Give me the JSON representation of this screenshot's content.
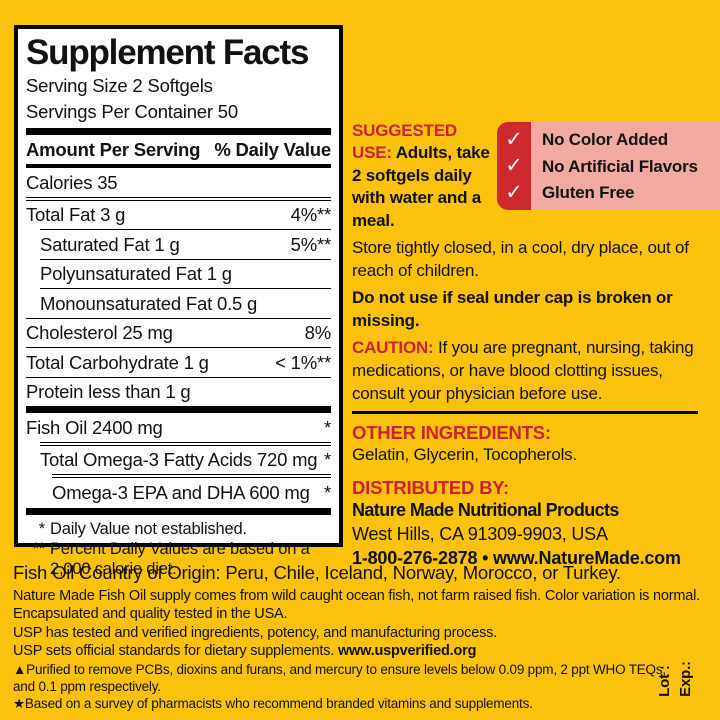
{
  "colors": {
    "background": "#FBC20D",
    "panel_bg": "#FFFFFF",
    "text": "#121212",
    "heading_red": "#CE2130",
    "badge_red": "#CE2A2E",
    "badge_pink": "#F2A9A2"
  },
  "panel": {
    "title": "Supplement Facts",
    "serving_size": "Serving Size 2 Softgels",
    "servings_per_container": "Servings Per Container 50",
    "header": {
      "left": "Amount Per Serving",
      "right": "% Daily Value"
    },
    "rows": [
      {
        "label": "Calories 35",
        "value": "",
        "cls": "sep-none"
      },
      {
        "label": "Total Fat 3 g",
        "value": "4%**",
        "cls": "sep-double"
      },
      {
        "label": "Saturated Fat 1 g",
        "value": "5%**",
        "cls": "sep-thin ind1"
      },
      {
        "label": "Polyunsaturated Fat 1 g",
        "value": "",
        "cls": "sep-thin ind1"
      },
      {
        "label": "Monounsaturated Fat 0.5 g",
        "value": "",
        "cls": "sep-thin ind1"
      },
      {
        "label": "Cholesterol 25 mg",
        "value": "8%",
        "cls": "sep-thin"
      },
      {
        "label": "Total Carbohydrate 1 g",
        "value": "< 1%**",
        "cls": "sep-thin"
      },
      {
        "label": "Protein less than 1 g",
        "value": "",
        "cls": "sep-thin"
      },
      {
        "label": "Fish Oil 2400 mg",
        "value": "*",
        "cls": "sep-thick"
      },
      {
        "label": "Total Omega-3 Fatty Acids 720 mg",
        "value": "*",
        "cls": "sep-double ind1"
      },
      {
        "label": "Omega-3 EPA and DHA 600 mg",
        "value": "*",
        "cls": "sep-double ind2"
      }
    ],
    "footnotes": [
      {
        "symbol": "*",
        "text": "Daily Value not established."
      },
      {
        "symbol": "**",
        "text": "Percent Daily Values are based on a 2,000 calorie diet."
      }
    ]
  },
  "right_column": {
    "suggested_use": {
      "heading": "SUGGESTED USE:",
      "text": " Adults, take 2 softgels daily with water and a meal."
    },
    "badge": {
      "items": [
        {
          "check": "✓",
          "label": "No Color Added"
        },
        {
          "check": "✓",
          "label": "No Artificial Flavors"
        },
        {
          "check": "✓",
          "label": "Gluten Free"
        }
      ]
    },
    "storage": "Store tightly closed, in a cool, dry place, out of reach of children.",
    "seal_warning": "Do not use if seal under cap is broken or missing.",
    "caution": {
      "heading": "CAUTION:",
      "text": " If you are pregnant, nursing, taking medications, or have blood clotting issues, consult your physician before use."
    },
    "other_ingredients": {
      "heading": "OTHER INGREDIENTS:",
      "text": "Gelatin, Glycerin, Tocopherols."
    },
    "distributed_by": {
      "heading": "DISTRIBUTED BY:",
      "name": "Nature Made Nutritional Products",
      "address": "West Hills, CA 91309-9903, USA",
      "phone_web": "1-800-276-2878 • www.NatureMade.com"
    }
  },
  "bottom": {
    "origin": "Fish Oil Country of Origin: Peru, Chile, Iceland, Norway, Morocco, or Turkey.",
    "supply": "Nature Made Fish Oil supply comes from wild caught ocean fish, not farm raised fish. Color variation is normal.",
    "encapsulated": "Encapsulated and quality tested in the USA.",
    "usp_tested": "USP has tested and verified ingredients, potency, and manufacturing process.",
    "usp_standards": "USP sets official standards for dietary supplements. ",
    "usp_url": "www.uspverified.org",
    "purified": "▲Purified to remove PCBs, dioxins and furans, and mercury to ensure levels below 0.09 ppm, 2 ppt WHO TEQs, and 0.1 ppm respectively.",
    "survey": "★Based on a survey of pharmacists who recommend branded vitamins and supplements."
  },
  "side": {
    "lot": "Lot :",
    "exp": "Exp.:"
  }
}
